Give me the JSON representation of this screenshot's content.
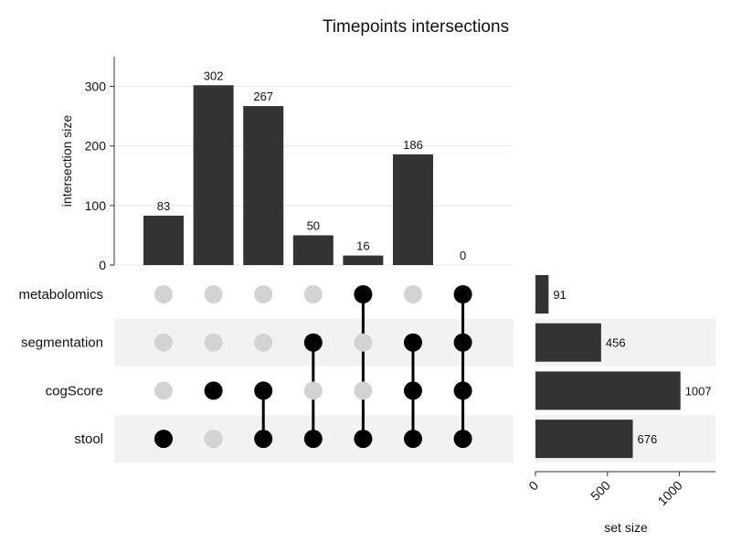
{
  "chart_data": {
    "type": "upset",
    "title": "Timepoints intersections",
    "ylabel": "intersection size",
    "ylim": [
      0,
      350
    ],
    "yticks": [
      0,
      100,
      200,
      300
    ],
    "set_size_label": "set size",
    "set_size_xlim": [
      0,
      1250
    ],
    "set_size_ticks": [
      0,
      500,
      1000
    ],
    "sets": [
      {
        "name": "metabolomics",
        "size": 91
      },
      {
        "name": "segmentation",
        "size": 456
      },
      {
        "name": "cogScore",
        "size": 1007
      },
      {
        "name": "stool",
        "size": 676
      }
    ],
    "intersections": [
      {
        "size": 83,
        "sets": [
          "stool"
        ]
      },
      {
        "size": 302,
        "sets": [
          "cogScore"
        ]
      },
      {
        "size": 267,
        "sets": [
          "cogScore",
          "stool"
        ]
      },
      {
        "size": 50,
        "sets": [
          "segmentation",
          "stool"
        ]
      },
      {
        "size": 16,
        "sets": [
          "metabolomics",
          "stool"
        ]
      },
      {
        "size": 186,
        "sets": [
          "segmentation",
          "cogScore",
          "stool"
        ]
      },
      {
        "size": 0,
        "sets": [
          "metabolomics",
          "segmentation",
          "cogScore",
          "stool"
        ]
      }
    ],
    "colors": {
      "bar": "#333333",
      "dot_active": "#000000",
      "dot_inactive": "#d3d3d3",
      "stripe": "#f2f2f2",
      "grid": "#e5e5e5"
    }
  }
}
